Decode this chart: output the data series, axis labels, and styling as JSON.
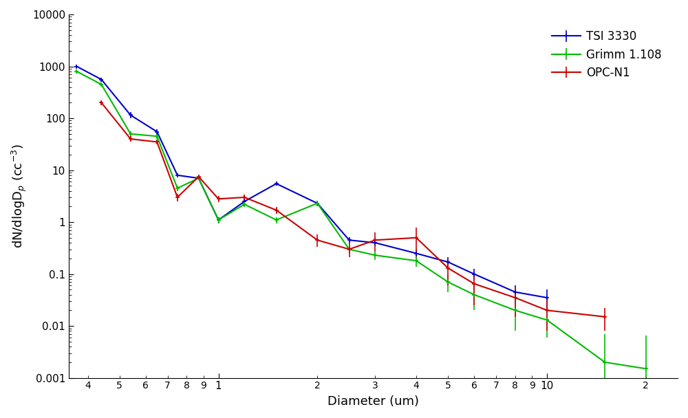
{
  "xlabel": "Diameter (um)",
  "xlim": [
    0.35,
    25.0
  ],
  "ylim": [
    0.001,
    10000
  ],
  "legend_labels": [
    "TSI 3330",
    "Grimm 1.108",
    "OPC-N1"
  ],
  "colors": [
    "#0000cc",
    "#00bb00",
    "#cc0000"
  ],
  "TSI_x": [
    0.37,
    0.44,
    0.54,
    0.65,
    0.75,
    0.87,
    1.0,
    1.2,
    1.5,
    2.0,
    2.5,
    3.0,
    4.0,
    5.0,
    6.0,
    8.0,
    10.0,
    15.0
  ],
  "TSI_y": [
    1000,
    560,
    115,
    55,
    8.0,
    7.0,
    1.1,
    2.5,
    5.5,
    2.3,
    0.45,
    0.4,
    0.25,
    0.17,
    0.1,
    0.045,
    0.035,
    null
  ],
  "TSI_yerr_lo": [
    80,
    50,
    15,
    6,
    0.8,
    0.6,
    0.15,
    0.3,
    0.5,
    0.25,
    0.06,
    0.06,
    0.05,
    0.04,
    0.025,
    0.015,
    0.015,
    null
  ],
  "TSI_yerr_hi": [
    80,
    50,
    15,
    6,
    0.8,
    0.6,
    0.15,
    0.3,
    0.5,
    0.25,
    0.06,
    0.06,
    0.05,
    0.04,
    0.025,
    0.015,
    0.015,
    null
  ],
  "Grimm_x": [
    0.37,
    0.44,
    0.54,
    0.65,
    0.75,
    0.87,
    1.0,
    1.2,
    1.5,
    2.0,
    2.5,
    3.0,
    4.0,
    5.0,
    6.0,
    8.0,
    10.0,
    15.0,
    20.0
  ],
  "Grimm_y": [
    800,
    450,
    50,
    45,
    4.5,
    7.0,
    1.1,
    2.2,
    1.1,
    2.3,
    0.3,
    0.23,
    0.18,
    0.07,
    0.04,
    0.02,
    0.013,
    0.002,
    0.0015
  ],
  "Grimm_yerr_lo": [
    60,
    35,
    6,
    5,
    0.6,
    0.6,
    0.15,
    0.25,
    0.15,
    0.25,
    0.05,
    0.04,
    0.04,
    0.025,
    0.02,
    0.012,
    0.007,
    0.001,
    0.001
  ],
  "Grimm_yerr_hi": [
    60,
    35,
    6,
    5,
    0.6,
    0.6,
    0.15,
    0.25,
    0.15,
    0.25,
    0.05,
    0.04,
    0.04,
    0.025,
    0.02,
    0.012,
    0.007,
    0.005,
    0.005
  ],
  "OPC_x": [
    0.44,
    0.54,
    0.65,
    0.75,
    0.87,
    1.0,
    1.2,
    1.5,
    2.0,
    2.5,
    3.0,
    4.0,
    5.0,
    6.0,
    8.0,
    10.0,
    15.0
  ],
  "OPC_y": [
    200,
    40,
    35,
    3.0,
    7.5,
    2.8,
    3.0,
    1.7,
    0.45,
    0.3,
    0.45,
    0.5,
    0.13,
    0.065,
    0.035,
    0.02,
    0.015
  ],
  "OPC_yerr_lo": [
    20,
    5,
    4,
    0.5,
    0.7,
    0.4,
    0.4,
    0.25,
    0.12,
    0.09,
    0.18,
    0.28,
    0.07,
    0.04,
    0.02,
    0.012,
    0.007
  ],
  "OPC_yerr_hi": [
    20,
    5,
    4,
    0.5,
    0.7,
    0.4,
    0.4,
    0.25,
    0.12,
    0.09,
    0.18,
    0.28,
    0.07,
    0.04,
    0.02,
    0.012,
    0.007
  ]
}
